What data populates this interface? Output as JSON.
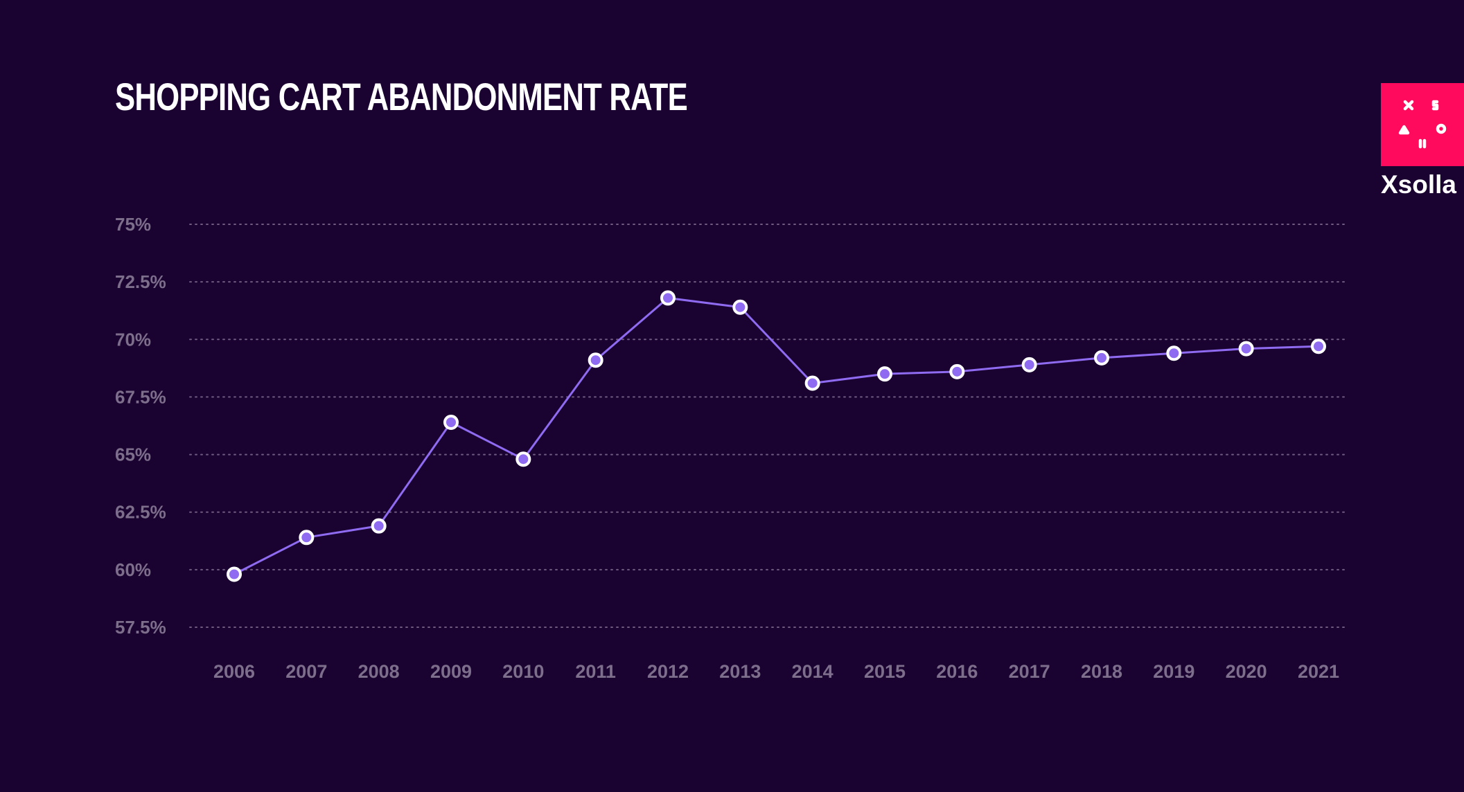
{
  "colors": {
    "background": "#1b0331",
    "line": "#8e6bf0",
    "marker_fill": "#8e6bf0",
    "marker_stroke": "#ffffff",
    "grid": "#6e5b80",
    "tick_text": "#7d6e8c",
    "title": "#ffffff",
    "logo_accent": "#ff0a5c"
  },
  "brand": {
    "name": "Xsolla",
    "logo_icon": "xsolla-symbols-logo"
  },
  "chart_data": {
    "type": "line",
    "title": "SHOPPING CART ABANDONMENT RATE",
    "xlabel": "",
    "ylabel": "",
    "categories": [
      "2006",
      "2007",
      "2008",
      "2009",
      "2010",
      "2011",
      "2012",
      "2013",
      "2014",
      "2015",
      "2016",
      "2017",
      "2018",
      "2019",
      "2020",
      "2021"
    ],
    "series": [
      {
        "values": [
          59.8,
          61.4,
          61.9,
          66.4,
          64.8,
          69.1,
          71.8,
          71.4,
          68.1,
          68.5,
          68.6,
          68.9,
          69.2,
          69.4,
          69.6,
          69.7
        ]
      }
    ],
    "yticks": [
      57.5,
      60,
      62.5,
      65,
      67.5,
      70,
      72.5,
      75
    ],
    "ytick_labels": [
      "57.5%",
      "60%",
      "62.5%",
      "65%",
      "67.5%",
      "70%",
      "72.5%",
      "75%"
    ],
    "ylim": [
      57.5,
      75
    ],
    "grid": true,
    "grid_style": "dotted",
    "legend": "none"
  }
}
